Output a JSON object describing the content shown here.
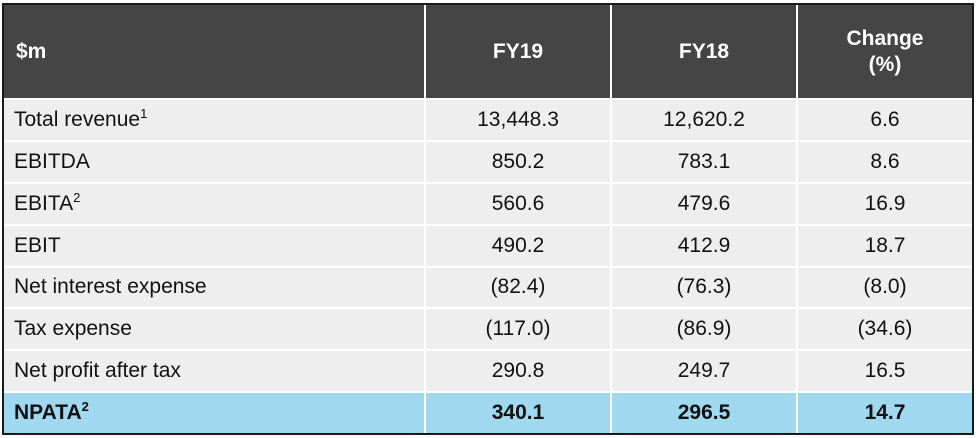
{
  "table": {
    "headers": {
      "label": "$m",
      "fy19": "FY19",
      "fy18": "FY18",
      "change_line1": "Change",
      "change_line2": "(%)"
    },
    "rows": [
      {
        "label": "Total revenue",
        "sup": "1",
        "fy19": "13,448.3",
        "fy18": "12,620.2",
        "change": "6.6"
      },
      {
        "label": "EBITDA",
        "sup": "",
        "fy19": "850.2",
        "fy18": "783.1",
        "change": "8.6"
      },
      {
        "label": "EBITA",
        "sup": "2",
        "fy19": "560.6",
        "fy18": "479.6",
        "change": "16.9"
      },
      {
        "label": "EBIT",
        "sup": "",
        "fy19": "490.2",
        "fy18": "412.9",
        "change": "18.7"
      },
      {
        "label": "Net interest expense",
        "sup": "",
        "fy19": "(82.4)",
        "fy18": "(76.3)",
        "change": "(8.0)"
      },
      {
        "label": "Tax expense",
        "sup": "",
        "fy19": "(117.0)",
        "fy18": "(86.9)",
        "change": "(34.6)"
      },
      {
        "label": "Net profit after tax",
        "sup": "",
        "fy19": "290.8",
        "fy18": "249.7",
        "change": "16.5"
      },
      {
        "label": "NPATA",
        "sup": "2",
        "fy19": "340.1",
        "fy18": "296.5",
        "change": "14.7"
      }
    ],
    "highlight_color": "#9fd8ef",
    "header_color": "#454545",
    "row_color": "#eeeeee"
  }
}
